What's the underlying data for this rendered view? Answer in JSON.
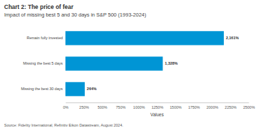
{
  "chart_data": {
    "type": "bar",
    "orientation": "horizontal",
    "title": "Chart 2: The price of fear",
    "subtitle": "Impact of missing best 5 and 30 days in S&P 500 (1993-2024)",
    "categories": [
      "Remain fully invested",
      "Missing the best 5 days",
      "Missing the best 30 days"
    ],
    "values": [
      2161,
      1328,
      264
    ],
    "value_labels": [
      "2,161%",
      "1,328%",
      "264%"
    ],
    "data_labels": true,
    "color": "#0095d5",
    "xlabel": "Values",
    "xlim": [
      0,
      2500
    ],
    "xticks": [
      {
        "value": 0,
        "label": "0%"
      },
      {
        "value": 250,
        "label": "250%"
      },
      {
        "value": 500,
        "label": "500%"
      },
      {
        "value": 750,
        "label": "750%"
      },
      {
        "value": 1000,
        "label": "1000%"
      },
      {
        "value": 1250,
        "label": "1250%"
      },
      {
        "value": 1500,
        "label": "1500%"
      },
      {
        "value": 1750,
        "label": "1750%"
      },
      {
        "value": 2000,
        "label": "2000%"
      },
      {
        "value": 2250,
        "label": "2250%"
      },
      {
        "value": 2500,
        "label": "2500%"
      }
    ],
    "grid": false,
    "source": "Source: Fidelity International, Refinitiv Eikon Datastream, August 2024."
  }
}
